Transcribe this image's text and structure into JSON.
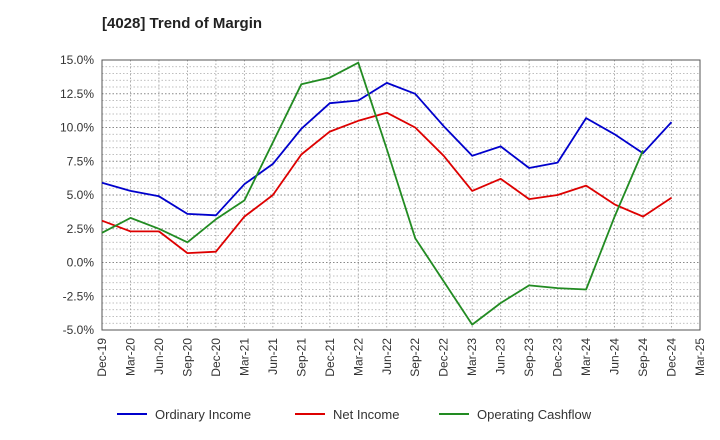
{
  "chart_data": {
    "type": "line",
    "title": "[4028]  Trend of Margin",
    "xlabel": "",
    "ylabel": "",
    "categories": [
      "Dec-19",
      "Mar-20",
      "Jun-20",
      "Sep-20",
      "Dec-20",
      "Mar-21",
      "Jun-21",
      "Sep-21",
      "Dec-21",
      "Mar-22",
      "Jun-22",
      "Sep-22",
      "Dec-22",
      "Mar-23",
      "Jun-23",
      "Sep-23",
      "Dec-23",
      "Mar-24",
      "Jun-24",
      "Sep-24",
      "Dec-24",
      "Mar-25"
    ],
    "y_ticks": [
      "15.0%",
      "12.5%",
      "10.0%",
      "7.5%",
      "5.0%",
      "2.5%",
      "0.0%",
      "-2.5%",
      "-5.0%"
    ],
    "ylim": [
      -5.0,
      15.0
    ],
    "grid": true,
    "legend_position": "bottom",
    "series": [
      {
        "name": "Ordinary Income",
        "color": "#0000cc",
        "values": [
          5.9,
          5.3,
          4.9,
          3.6,
          3.5,
          5.8,
          7.3,
          9.9,
          11.8,
          12.0,
          13.3,
          12.5,
          10.1,
          7.9,
          8.6,
          7.0,
          7.4,
          10.7,
          9.5,
          8.1,
          10.4,
          null
        ]
      },
      {
        "name": "Net Income",
        "color": "#dd0000",
        "values": [
          3.1,
          2.3,
          2.3,
          0.7,
          0.8,
          3.4,
          5.0,
          8.0,
          9.7,
          10.5,
          11.1,
          10.0,
          7.9,
          5.3,
          6.2,
          4.7,
          5.0,
          5.7,
          4.3,
          3.4,
          4.8,
          null
        ]
      },
      {
        "name": "Operating Cashflow",
        "color": "#228b22",
        "values": [
          2.2,
          3.3,
          2.5,
          1.5,
          3.2,
          4.6,
          8.9,
          13.2,
          13.7,
          14.8,
          8.4,
          1.8,
          -1.4,
          -4.6,
          -3.0,
          -1.7,
          -1.9,
          -2.0,
          3.4,
          8.3,
          null,
          null
        ]
      }
    ]
  }
}
